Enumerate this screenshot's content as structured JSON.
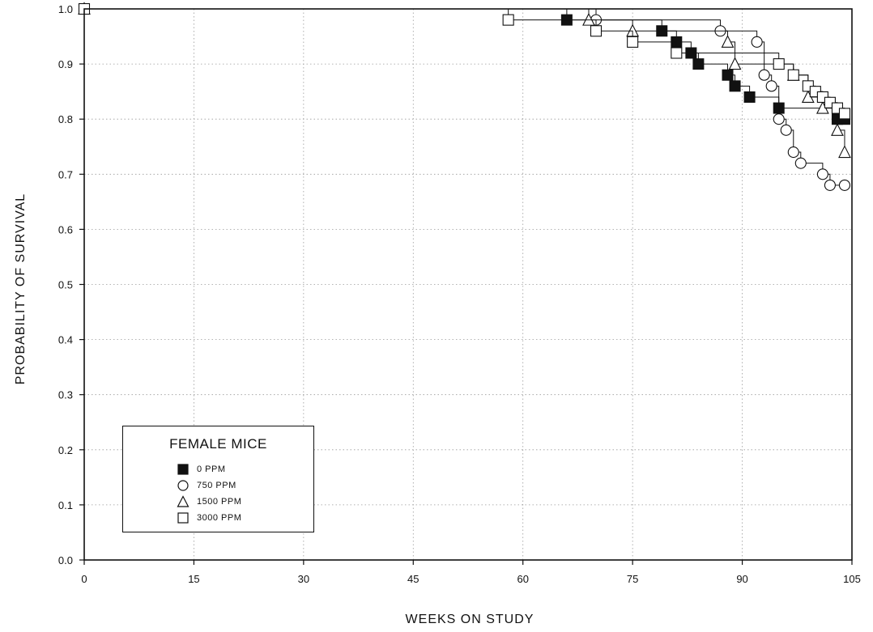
{
  "chart_data": {
    "type": "line",
    "subtype": "kaplan-meier survival step plot",
    "xlabel": "WEEKS ON STUDY",
    "ylabel": "PROBABILITY OF SURVIVAL",
    "xlim": [
      0,
      105
    ],
    "ylim": [
      0.0,
      1.0
    ],
    "xticks": [
      0,
      15,
      30,
      45,
      60,
      75,
      90,
      105
    ],
    "yticks": [
      "0.0",
      "0.1",
      "0.2",
      "0.3",
      "0.4",
      "0.5",
      "0.6",
      "0.7",
      "0.8",
      "0.9",
      "1.0"
    ],
    "grid": true,
    "legend": {
      "title": "FEMALE MICE",
      "position": "bottom-left",
      "entries": [
        "0 PPM",
        "750 PPM",
        "1500 PPM",
        "3000 PPM"
      ]
    },
    "series": [
      {
        "name": "0 PPM",
        "marker": "filled-square",
        "steps": [
          [
            0,
            1.0
          ],
          [
            66,
            0.98
          ],
          [
            79,
            0.96
          ],
          [
            81,
            0.94
          ],
          [
            83,
            0.92
          ],
          [
            84,
            0.9
          ],
          [
            88,
            0.88
          ],
          [
            89,
            0.86
          ],
          [
            91,
            0.84
          ],
          [
            95,
            0.82
          ],
          [
            103,
            0.8
          ],
          [
            104,
            0.8
          ]
        ]
      },
      {
        "name": "750 PPM",
        "marker": "open-circle",
        "steps": [
          [
            0,
            1.0
          ],
          [
            70,
            0.98
          ],
          [
            87,
            0.96
          ],
          [
            92,
            0.94
          ],
          [
            93,
            0.88
          ],
          [
            94,
            0.86
          ],
          [
            95,
            0.8
          ],
          [
            96,
            0.78
          ],
          [
            97,
            0.74
          ],
          [
            98,
            0.72
          ],
          [
            101,
            0.7
          ],
          [
            102,
            0.68
          ],
          [
            104,
            0.68
          ]
        ]
      },
      {
        "name": "1500 PPM",
        "marker": "open-triangle",
        "steps": [
          [
            0,
            1.0
          ],
          [
            69,
            0.98
          ],
          [
            75,
            0.96
          ],
          [
            88,
            0.94
          ],
          [
            89,
            0.9
          ],
          [
            97,
            0.88
          ],
          [
            99,
            0.84
          ],
          [
            101,
            0.82
          ],
          [
            103,
            0.78
          ],
          [
            104,
            0.74
          ]
        ]
      },
      {
        "name": "3000 PPM",
        "marker": "open-square",
        "steps": [
          [
            0,
            1.0
          ],
          [
            58,
            0.98
          ],
          [
            70,
            0.96
          ],
          [
            75,
            0.94
          ],
          [
            81,
            0.92
          ],
          [
            95,
            0.9
          ],
          [
            97,
            0.88
          ],
          [
            99,
            0.86
          ],
          [
            100,
            0.85
          ],
          [
            101,
            0.84
          ],
          [
            102,
            0.83
          ],
          [
            103,
            0.82
          ],
          [
            104,
            0.81
          ]
        ]
      }
    ]
  }
}
